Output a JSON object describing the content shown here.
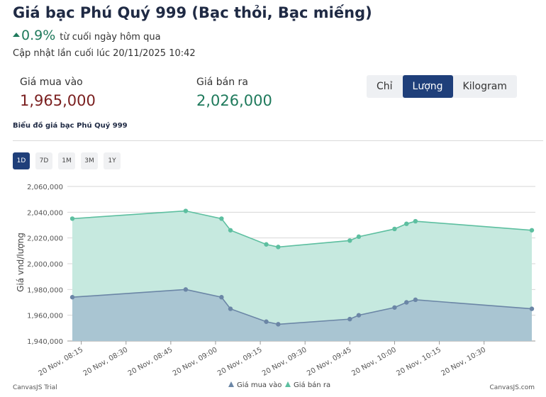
{
  "header": {
    "title": "Giá bạc Phú Quý 999 (Bạc thỏi, Bạc miếng)",
    "change_pct": "0.9%",
    "change_text": "từ cuối ngày hôm qua",
    "updated_label": "Cập nhật lần cuối lúc",
    "updated_time": "20/11/2025 10:42"
  },
  "prices": {
    "buy_label": "Giá mua vào",
    "buy_value": "1,965,000",
    "sell_label": "Giá bán ra",
    "sell_value": "2,026,000"
  },
  "unit_tabs": [
    {
      "label": "Chỉ",
      "active": false
    },
    {
      "label": "Lượng",
      "active": true
    },
    {
      "label": "Kilogram",
      "active": false
    }
  ],
  "chart_caption": "Biểu đồ giá bạc Phú Quý 999",
  "range_tabs": [
    {
      "label": "1D",
      "active": true
    },
    {
      "label": "7D",
      "active": false
    },
    {
      "label": "1M",
      "active": false
    },
    {
      "label": "3M",
      "active": false
    },
    {
      "label": "1Y",
      "active": false
    }
  ],
  "chart_data": {
    "type": "area",
    "ylabel": "Giá vnd/lượng",
    "xlabel": "",
    "ylim": [
      1940000,
      2060000
    ],
    "yticks": [
      1940000,
      1960000,
      1980000,
      2000000,
      2020000,
      2040000,
      2060000
    ],
    "ytick_labels": [
      "1,940,000",
      "1,960,000",
      "1,980,000",
      "2,000,000",
      "2,020,000",
      "2,040,000",
      "2,060,000"
    ],
    "xlim_minutes": [
      492,
      646
    ],
    "xticks_minutes": [
      495,
      510,
      525,
      540,
      555,
      570,
      585,
      600,
      615,
      630
    ],
    "xtick_labels": [
      "20 Nov, 08:15",
      "20 Nov, 08:30",
      "20 Nov, 08:45",
      "20 Nov, 09:00",
      "20 Nov, 09:15",
      "20 Nov, 09:30",
      "20 Nov, 09:45",
      "20 Nov, 10:00",
      "20 Nov, 10:15",
      "20 Nov, 10:30"
    ],
    "x_minutes": [
      492,
      530,
      542,
      545,
      557,
      561,
      585,
      588,
      600,
      604,
      607,
      646
    ],
    "series": [
      {
        "name": "Giá mua vào",
        "color": "#6b86a6",
        "fill": "#a9c5d2",
        "values": [
          1974000,
          1980000,
          1974000,
          1965000,
          1955000,
          1953000,
          1957000,
          1960000,
          1966000,
          1970000,
          1972000,
          1965000
        ]
      },
      {
        "name": "Giá bán ra",
        "color": "#5dbfa0",
        "fill": "#c6e9df",
        "values": [
          2035000,
          2041000,
          2035000,
          2026000,
          2015000,
          2013000,
          2018000,
          2021000,
          2027000,
          2031000,
          2033000,
          2026000
        ]
      }
    ],
    "legend_position": "bottom-center"
  },
  "credits": {
    "left": "CanvasJS Trial",
    "right": "CanvasJS.com"
  }
}
